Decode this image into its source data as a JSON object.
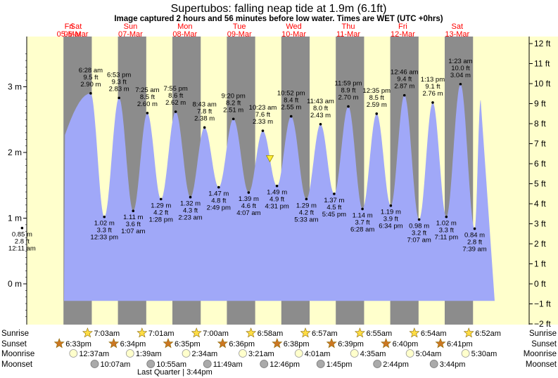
{
  "title": "Supertubos: falling  neap tide at 1.9m (6.1ft)",
  "subtitle": "Image captured 2 hours and 56 minutes before low water. Times are WET (UTC +0hrs)",
  "colors": {
    "day": "#ffffcc",
    "night": "#8c8c8c",
    "water": "#a0a8f8",
    "date_text": "#ff0000",
    "sun_star": "#ffdd44",
    "sunset_star": "#cc7722",
    "moonrise": "#ffffcc",
    "moonset": "#aaaaaa"
  },
  "chart_data": {
    "type": "area",
    "xlabel": "",
    "ylabel": "",
    "x_unit": "days from Fri 05-Mar 00:00 (WET)",
    "days": [
      {
        "dow": "Fri",
        "date": "05-Mar"
      },
      {
        "dow": "Sat",
        "date": "06-Mar"
      },
      {
        "dow": "Sun",
        "date": "07-Mar"
      },
      {
        "dow": "Mon",
        "date": "08-Mar"
      },
      {
        "dow": "Tue",
        "date": "09-Mar"
      },
      {
        "dow": "Wed",
        "date": "10-Mar"
      },
      {
        "dow": "Thu",
        "date": "11-Mar"
      },
      {
        "dow": "Fri",
        "date": "12-Mar"
      },
      {
        "dow": "Sat",
        "date": "13-Mar"
      }
    ],
    "y_left_ticks": [
      {
        "v": 0,
        "label": "0 m"
      },
      {
        "v": 1,
        "label": "1 m"
      },
      {
        "v": 2,
        "label": "2 m"
      },
      {
        "v": 3,
        "label": "3 m"
      }
    ],
    "y_right_ticks_ft": [
      {
        "v": -2,
        "label": "−2 ft"
      },
      {
        "v": -1,
        "label": "−1 ft"
      },
      {
        "v": 0,
        "label": "0 ft"
      },
      {
        "v": 1,
        "label": "1 ft"
      },
      {
        "v": 2,
        "label": "2 ft"
      },
      {
        "v": 3,
        "label": "3 ft"
      },
      {
        "v": 4,
        "label": "4 ft"
      },
      {
        "v": 5,
        "label": "5 ft"
      },
      {
        "v": 6,
        "label": "6 ft"
      },
      {
        "v": 7,
        "label": "7 ft"
      },
      {
        "v": 8,
        "label": "8 ft"
      },
      {
        "v": 9,
        "label": "9 ft"
      },
      {
        "v": 10,
        "label": "10 ft"
      },
      {
        "v": 11,
        "label": "11 ft"
      },
      {
        "v": 12,
        "label": "12 ft"
      }
    ],
    "ylim_m": [
      -0.6,
      3.8
    ],
    "tide_events": [
      {
        "t": 0.01,
        "h": 0.85,
        "ft": "2.8 ft",
        "time": "12:11 am",
        "type": "low"
      },
      {
        "t": 1.27,
        "h": 2.9,
        "ft": "9.5 ft",
        "time": "6:28 am",
        "type": "high"
      },
      {
        "t": 1.52,
        "h": 1.02,
        "ft": "3.3 ft",
        "time": "12:33 pm",
        "type": "low"
      },
      {
        "t": 1.79,
        "h": 2.83,
        "ft": "9.3 ft",
        "time": "6:53 pm",
        "type": "high"
      },
      {
        "t": 2.05,
        "h": 1.11,
        "ft": "3.6 ft",
        "time": "1:07 am",
        "type": "low"
      },
      {
        "t": 2.31,
        "h": 2.6,
        "ft": "8.5 ft",
        "time": "7:25 am",
        "type": "high"
      },
      {
        "t": 2.56,
        "h": 1.29,
        "ft": "4.2 ft",
        "time": "1:28 pm",
        "type": "low"
      },
      {
        "t": 2.83,
        "h": 2.62,
        "ft": "8.6 ft",
        "time": "7:55 pm",
        "type": "high"
      },
      {
        "t": 3.1,
        "h": 1.32,
        "ft": "4.3 ft",
        "time": "2:23 am",
        "type": "low"
      },
      {
        "t": 3.36,
        "h": 2.38,
        "ft": "7.8 ft",
        "time": "8:43 am",
        "type": "high"
      },
      {
        "t": 3.62,
        "h": 1.47,
        "ft": "4.8 ft",
        "time": "2:49 pm",
        "type": "low"
      },
      {
        "t": 3.89,
        "h": 2.51,
        "ft": "8.2 ft",
        "time": "9:20 pm",
        "type": "high"
      },
      {
        "t": 4.17,
        "h": 1.39,
        "ft": "4.6 ft",
        "time": "4:07 am",
        "type": "low"
      },
      {
        "t": 4.43,
        "h": 2.33,
        "ft": "7.6 ft",
        "time": "10:23 am",
        "type": "high"
      },
      {
        "t": 4.69,
        "h": 1.49,
        "ft": "4.9 ft",
        "time": "4:31 pm",
        "type": "low"
      },
      {
        "t": 4.95,
        "h": 2.55,
        "ft": "8.4 ft",
        "time": "10:52 pm",
        "type": "high"
      },
      {
        "t": 5.23,
        "h": 1.29,
        "ft": "4.2 ft",
        "time": "5:33 am",
        "type": "low"
      },
      {
        "t": 5.49,
        "h": 2.43,
        "ft": "8.0 ft",
        "time": "11:43 am",
        "type": "high"
      },
      {
        "t": 5.74,
        "h": 1.37,
        "ft": "4.5 ft",
        "time": "5:45 pm",
        "type": "low"
      },
      {
        "t": 6.0,
        "h": 2.7,
        "ft": "8.9 ft",
        "time": "11:59 pm",
        "type": "high"
      },
      {
        "t": 6.26,
        "h": 1.14,
        "ft": "3.7 ft",
        "time": "6:28 am",
        "type": "low"
      },
      {
        "t": 6.52,
        "h": 2.59,
        "ft": "8.5 ft",
        "time": "12:35 pm",
        "type": "high"
      },
      {
        "t": 6.78,
        "h": 1.19,
        "ft": "3.9 ft",
        "time": "6:34 pm",
        "type": "low"
      },
      {
        "t": 7.03,
        "h": 2.87,
        "ft": "9.4 ft",
        "time": "12:46 am",
        "type": "high"
      },
      {
        "t": 7.3,
        "h": 0.98,
        "ft": "3.2 ft",
        "time": "7:07 am",
        "type": "low"
      },
      {
        "t": 7.55,
        "h": 2.76,
        "ft": "9.1 ft",
        "time": "1:13 pm",
        "type": "high"
      },
      {
        "t": 7.8,
        "h": 1.02,
        "ft": "3.3 ft",
        "time": "7:11 pm",
        "type": "low"
      },
      {
        "t": 8.06,
        "h": 3.04,
        "ft": "10.0 ft",
        "time": "1:23 am",
        "type": "high"
      },
      {
        "t": 8.32,
        "h": 0.84,
        "ft": "2.8 ft",
        "time": "7:39 am",
        "type": "low"
      }
    ],
    "curve_start": {
      "t": -0.26,
      "h": 3.05
    },
    "curve_end": {
      "t": 8.43,
      "h": 2.8
    },
    "current_marker": {
      "t": 4.56,
      "h": 1.9
    }
  },
  "sun_moon": {
    "row_labels": [
      "Sunrise",
      "Sunset",
      "Moonrise",
      "Moonset"
    ],
    "sunrise": [
      {
        "t": 1.29,
        "label": "7:03am"
      },
      {
        "t": 2.29,
        "label": "7:01am"
      },
      {
        "t": 3.29,
        "label": "7:00am"
      },
      {
        "t": 4.29,
        "label": "6:58am"
      },
      {
        "t": 5.29,
        "label": "6:57am"
      },
      {
        "t": 6.29,
        "label": "6:55am"
      },
      {
        "t": 7.29,
        "label": "6:54am"
      },
      {
        "t": 8.29,
        "label": "6:52am"
      }
    ],
    "sunset": [
      {
        "t": 0.77,
        "label": "6:33pm"
      },
      {
        "t": 1.77,
        "label": "6:34pm"
      },
      {
        "t": 2.77,
        "label": "6:35pm"
      },
      {
        "t": 3.77,
        "label": "6:36pm"
      },
      {
        "t": 4.77,
        "label": "6:38pm"
      },
      {
        "t": 5.77,
        "label": "6:39pm"
      },
      {
        "t": 6.77,
        "label": "6:40pm"
      },
      {
        "t": 7.77,
        "label": "6:41pm"
      }
    ],
    "moonrise": [
      {
        "t": 1.03,
        "label": "12:37am"
      },
      {
        "t": 2.07,
        "label": "1:39am"
      },
      {
        "t": 3.1,
        "label": "2:34am"
      },
      {
        "t": 4.14,
        "label": "3:21am"
      },
      {
        "t": 5.17,
        "label": "4:01am"
      },
      {
        "t": 6.19,
        "label": "4:35am"
      },
      {
        "t": 7.21,
        "label": "5:04am"
      },
      {
        "t": 8.23,
        "label": "5:30am"
      }
    ],
    "moonset": [
      {
        "t": 1.42,
        "label": "10:07am"
      },
      {
        "t": 2.45,
        "label": "10:55am"
      },
      {
        "t": 3.49,
        "label": "11:49am"
      },
      {
        "t": 4.53,
        "label": "12:46pm"
      },
      {
        "t": 5.57,
        "label": "1:45pm"
      },
      {
        "t": 6.61,
        "label": "2:44pm"
      },
      {
        "t": 7.65,
        "label": "3:44pm"
      }
    ],
    "phase_note": "Last Quarter | 3:44pm"
  }
}
